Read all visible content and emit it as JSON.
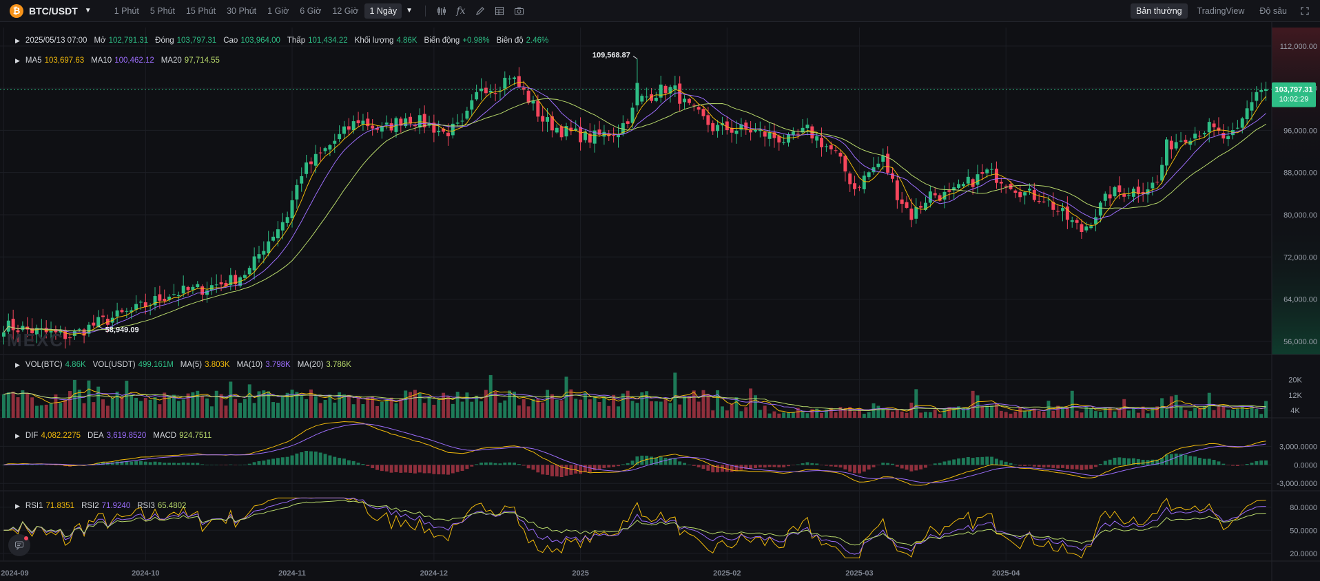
{
  "toolbar": {
    "symbol": "BTC/USDT",
    "coin_glyph": "₿",
    "intervals": [
      "1 Phút",
      "5 Phút",
      "15 Phút",
      "30 Phút",
      "1 Giờ",
      "6 Giờ",
      "12 Giờ",
      "1 Ngày"
    ],
    "active_interval": "1 Ngày",
    "tools": [
      "indicator-icon",
      "formula-icon",
      "pencil-icon",
      "layout-icon",
      "camera-icon"
    ],
    "view_tabs": [
      "Bản thường",
      "TradingView",
      "Độ sâu"
    ],
    "active_view": "Bản thường"
  },
  "ohlc": {
    "date": "2025/05/13 07:00",
    "open_label": "Mở",
    "open": "102,791.31",
    "close_label": "Đóng",
    "close": "103,797.31",
    "high_label": "Cao",
    "high": "103,964.00",
    "low_label": "Thấp",
    "low": "101,434.22",
    "volume_label": "Khối lượng",
    "volume": "4.86K",
    "change_label": "Biến động",
    "change": "+0.98%",
    "amplitude_label": "Biên độ",
    "amplitude": "2.46%"
  },
  "ma": {
    "ma5_label": "MA5",
    "ma5": "103,697.63",
    "ma10_label": "MA10",
    "ma10": "100,462.12",
    "ma20_label": "MA20",
    "ma20": "97,714.55"
  },
  "vol_legend": {
    "vol_btc_label": "VOL(BTC)",
    "vol_btc": "4.86K",
    "vol_usdt_label": "VOL(USDT)",
    "vol_usdt": "499.161M",
    "ma5_label": "MA(5)",
    "ma5": "3.803K",
    "ma10_label": "MA(10)",
    "ma10": "3.798K",
    "ma20_label": "MA(20)",
    "ma20": "3.786K"
  },
  "macd_legend": {
    "dif_label": "DIF",
    "dif": "4,082.2275",
    "dea_label": "DEA",
    "dea": "3,619.8520",
    "macd_label": "MACD",
    "macd": "924.7511"
  },
  "rsi_legend": {
    "rsi1_label": "RSI1",
    "rsi1": "71.8351",
    "rsi2_label": "RSI2",
    "rsi2": "71.9240",
    "rsi3_label": "RSI3",
    "rsi3": "65.4802"
  },
  "watermark": "MEXC",
  "colors": {
    "up": "#2ebd85",
    "down": "#f6465d",
    "ma5": "#f0b90b",
    "ma10": "#9b6dfb",
    "ma20": "#b8d96b",
    "grid": "#1c1e24",
    "bg": "#0f1014"
  },
  "chart_data": {
    "type": "candlestick",
    "x_tick_labels": [
      "2024-09",
      "2024-10",
      "2024-11",
      "2024-12",
      "2025",
      "2025-02",
      "2025-03",
      "2025-04"
    ],
    "price_axis": {
      "ticks": [
        "112,000.00",
        "104,000.00",
        "96,000.00",
        "88,000.00",
        "80,000.00",
        "72,000.00",
        "64,000.00",
        "56,000.00"
      ],
      "range": [
        53500,
        115500
      ]
    },
    "last_price": "103,797.31",
    "countdown": "10:02:29",
    "max_label": "109,568.87",
    "min_label": "58,949.09",
    "volume_axis": {
      "ticks": [
        "20K",
        "12K",
        "4K"
      ],
      "range": [
        0,
        26000
      ]
    },
    "macd_axis": {
      "ticks": [
        "3,000.0000",
        "0.0000",
        "-3,000.0000"
      ],
      "range": [
        -4200,
        6500
      ]
    },
    "rsi_axis": {
      "ticks": [
        "80.0000",
        "50.0000",
        "20.0000"
      ],
      "range": [
        10,
        95
      ]
    },
    "price_path": [
      [
        0,
        59000
      ],
      [
        6,
        58000
      ],
      [
        14,
        57000
      ],
      [
        20,
        59500
      ],
      [
        28,
        62000
      ],
      [
        35,
        65000
      ],
      [
        42,
        66000
      ],
      [
        48,
        67500
      ],
      [
        52,
        69500
      ],
      [
        55,
        74000
      ],
      [
        60,
        80000
      ],
      [
        63,
        88000
      ],
      [
        70,
        94000
      ],
      [
        75,
        98000
      ],
      [
        80,
        96000
      ],
      [
        85,
        98500
      ],
      [
        90,
        97000
      ],
      [
        93,
        95500
      ],
      [
        97,
        96800
      ],
      [
        101,
        104500
      ],
      [
        104,
        104000
      ],
      [
        107,
        106500
      ],
      [
        110,
        103200
      ],
      [
        114,
        98000
      ],
      [
        118,
        96000
      ],
      [
        124,
        94500
      ],
      [
        130,
        96000
      ],
      [
        135,
        102000
      ],
      [
        140,
        104000
      ],
      [
        142,
        103500
      ],
      [
        144,
        101000
      ],
      [
        150,
        96500
      ],
      [
        158,
        96000
      ],
      [
        166,
        94000
      ],
      [
        170,
        96000
      ],
      [
        176,
        91500
      ],
      [
        180,
        85000
      ],
      [
        183,
        88000
      ],
      [
        186,
        90500
      ],
      [
        189,
        84000
      ],
      [
        192,
        79800
      ],
      [
        196,
        84000
      ],
      [
        200,
        83500
      ],
      [
        204,
        86000
      ],
      [
        208,
        88000
      ],
      [
        212,
        86500
      ],
      [
        216,
        84000
      ],
      [
        220,
        83200
      ],
      [
        224,
        80000
      ],
      [
        228,
        77000
      ],
      [
        230,
        79000
      ],
      [
        234,
        84000
      ],
      [
        240,
        84800
      ],
      [
        244,
        86000
      ],
      [
        246,
        93000
      ],
      [
        250,
        95000
      ],
      [
        255,
        96500
      ],
      [
        259,
        94000
      ],
      [
        261,
        95700
      ],
      [
        263,
        100000
      ],
      [
        265,
        103500
      ],
      [
        267,
        103797
      ]
    ],
    "n_candles": 268
  }
}
